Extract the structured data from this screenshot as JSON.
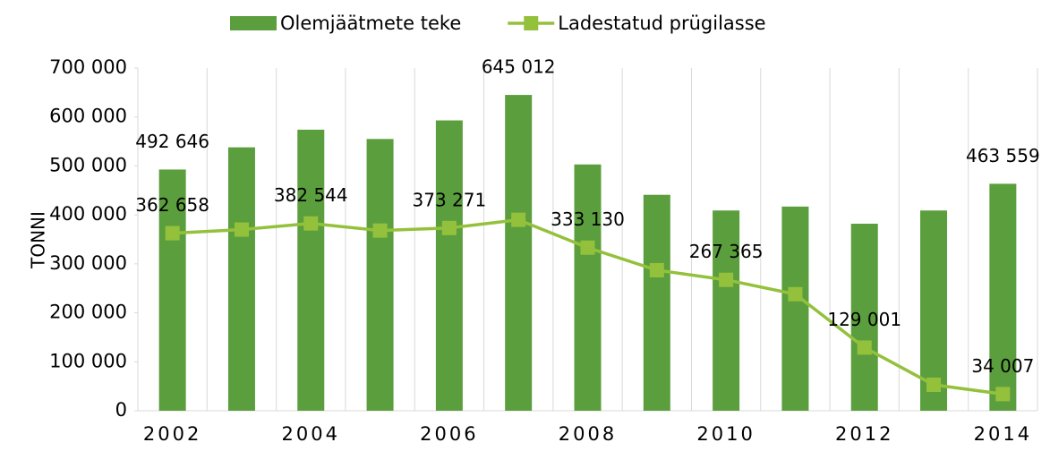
{
  "chart_data": {
    "type": "bar-line",
    "y_label": "TONNI",
    "categories": [
      "2002",
      null,
      "2004",
      null,
      "2006",
      null,
      "2008",
      null,
      "2010",
      null,
      "2012",
      null,
      "2014"
    ],
    "series": [
      {
        "name": "Olemjäätmete teke",
        "type": "bar",
        "color": "#5b9e3d",
        "values": [
          492646,
          538000,
          574000,
          555000,
          593000,
          645012,
          503000,
          441000,
          409000,
          417000,
          382000,
          409000,
          463559
        ],
        "value_labels": [
          "492 646",
          null,
          null,
          null,
          null,
          "645 012",
          null,
          null,
          null,
          null,
          null,
          null,
          "463 559"
        ]
      },
      {
        "name": "Ladestatud prügilasse",
        "type": "line",
        "color": "#94c13c",
        "values": [
          362658,
          370000,
          382544,
          368000,
          373271,
          390000,
          333130,
          287000,
          267365,
          238000,
          129001,
          53000,
          34007
        ],
        "value_labels": [
          "362 658",
          null,
          "382 544",
          null,
          "373 271",
          null,
          "333 130",
          null,
          "267 365",
          null,
          "129 001",
          null,
          "34 007"
        ]
      }
    ],
    "ylim": [
      0,
      700000
    ],
    "yticks": [
      0,
      {
        "value": 100000,
        "label": "100 000"
      },
      {
        "value": 200000,
        "label": "200 000"
      },
      {
        "value": 300000,
        "label": "300 000"
      },
      {
        "value": 400000,
        "label": "400 000"
      },
      {
        "value": 500000,
        "label": "500 000"
      },
      {
        "value": 600000,
        "label": "600 000"
      },
      {
        "value": 700000,
        "label": "700 000"
      }
    ],
    "legend": "top"
  }
}
